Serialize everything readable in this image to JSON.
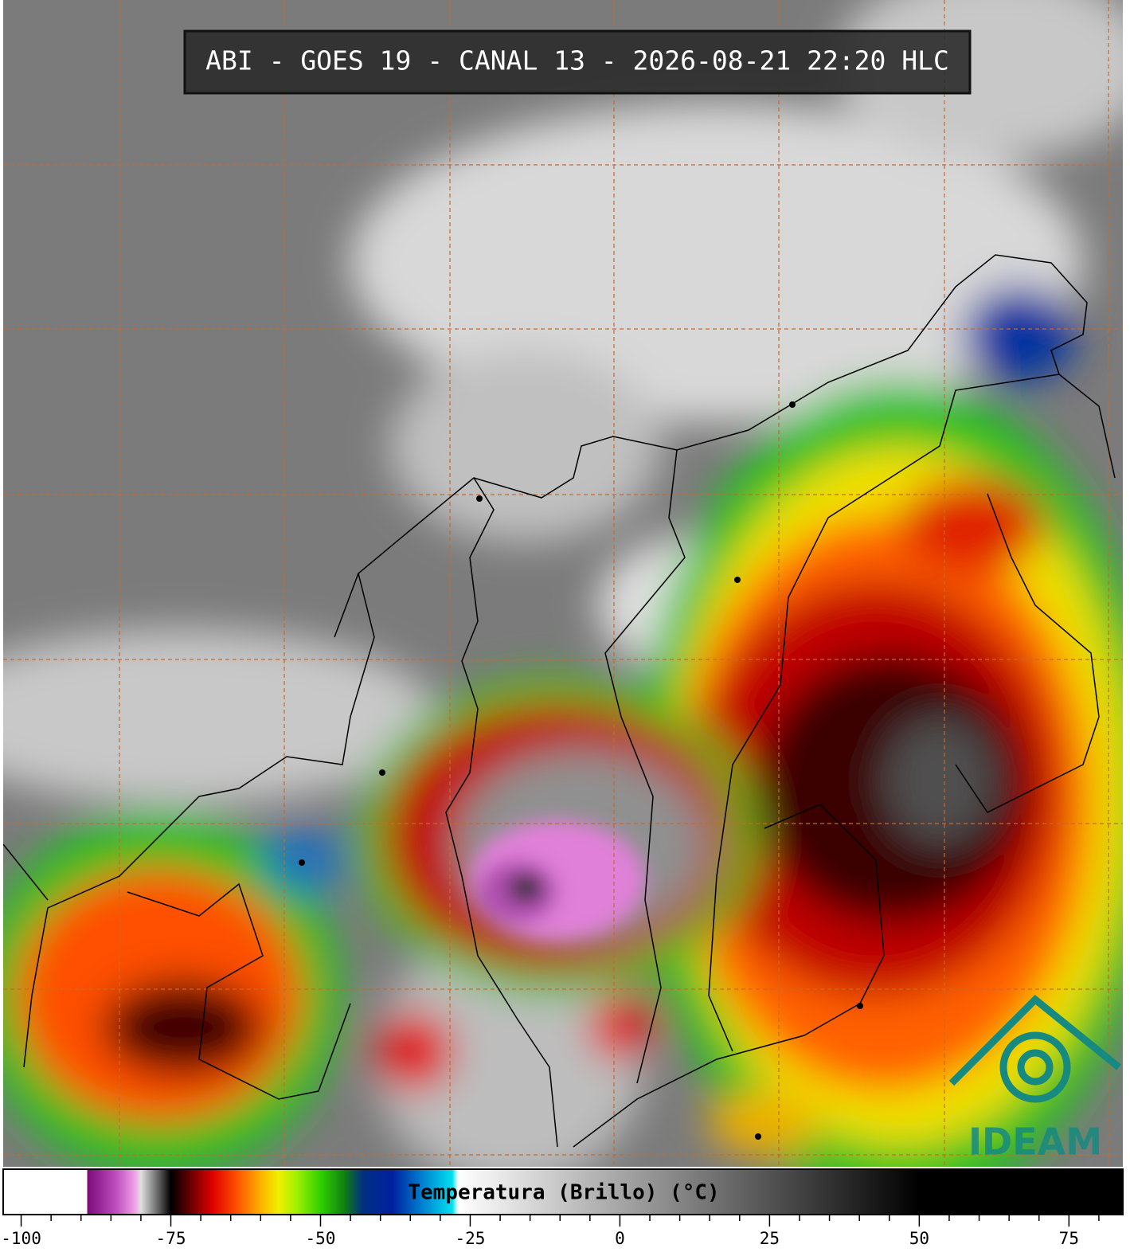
{
  "header": {
    "title": "ABI - GOES 19 - CANAL 13 - 2026-08-21 22:20 HLC"
  },
  "colorbar": {
    "label": "Temperatura (Brillo) (°C)",
    "lim": [
      -103,
      84
    ],
    "ticks": [
      -100,
      -75,
      -50,
      -25,
      0,
      25,
      50,
      75
    ],
    "minor_ticks": [
      -95,
      -90,
      -85,
      -80,
      -70,
      -65,
      -60,
      -55,
      -45,
      -40,
      -35,
      -30,
      -20,
      -15,
      -10,
      -5,
      5,
      10,
      15,
      20,
      30,
      35,
      40,
      45,
      55,
      60,
      65,
      70,
      80
    ],
    "colorscale": [
      [
        -103,
        "#ffffff"
      ],
      [
        -89,
        "#ffffff"
      ],
      [
        -89,
        "#7a0a7a"
      ],
      [
        -84,
        "#c050c0"
      ],
      [
        -81,
        "#f0a0e8"
      ],
      [
        -80,
        "#e0e0e0"
      ],
      [
        -77,
        "#606060"
      ],
      [
        -75,
        "#000000"
      ],
      [
        -72,
        "#600000"
      ],
      [
        -68,
        "#e00000"
      ],
      [
        -64,
        "#ff5000"
      ],
      [
        -60,
        "#ffb000"
      ],
      [
        -57,
        "#f0f000"
      ],
      [
        -54,
        "#a0f000"
      ],
      [
        -50,
        "#30d000"
      ],
      [
        -46,
        "#108010"
      ],
      [
        -43,
        "#003080"
      ],
      [
        -38,
        "#0020a0"
      ],
      [
        -33,
        "#0080d0"
      ],
      [
        -28,
        "#00e0f0"
      ],
      [
        -27,
        "#ffffff"
      ],
      [
        50,
        "#000000"
      ],
      [
        84,
        "#000000"
      ]
    ]
  },
  "logo": {
    "text": "IDEAM"
  }
}
